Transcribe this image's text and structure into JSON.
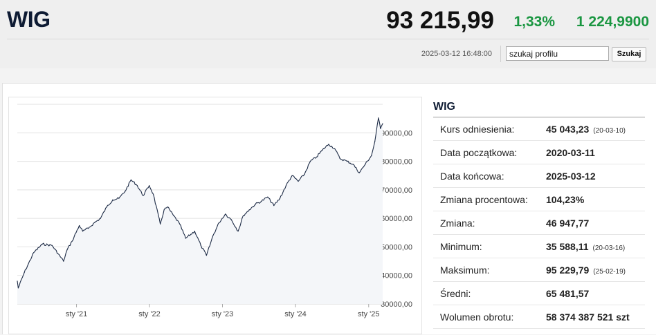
{
  "header": {
    "title": "WIG",
    "price": "93 215,99",
    "change_pct": "1,33%",
    "change_abs": "1 224,9900",
    "timestamp": "2025-03-12 16:48:00",
    "search_value": "szukaj profilu",
    "search_button": "Szukaj",
    "accent_positive": "#1a9641"
  },
  "chart_data": {
    "type": "area",
    "x_tick_labels": [
      "sty '21",
      "sty '22",
      "sty '23",
      "sty '24",
      "sty '25"
    ],
    "y_tick_labels": [
      "30000,00",
      "40000,00",
      "50000,00",
      "60000,00",
      "70000,00",
      "80000,00",
      "90000,00"
    ],
    "ylim": [
      30000,
      100000
    ],
    "xlim": [
      "2020-03-11",
      "2025-03-12"
    ],
    "grid": true,
    "series": [
      {
        "x": [
          "2020-03-11",
          "2020-03-16",
          "2020-04-15",
          "2020-06-01",
          "2020-07-15",
          "2020-09-01",
          "2020-10-28",
          "2020-11-15",
          "2020-12-10",
          "2021-01-15",
          "2021-02-01",
          "2021-03-01",
          "2021-04-01",
          "2021-05-01",
          "2021-06-01",
          "2021-07-01",
          "2021-08-01",
          "2021-09-01",
          "2021-10-01",
          "2021-11-01",
          "2021-11-30",
          "2021-12-31",
          "2022-01-20",
          "2022-02-24",
          "2022-03-15",
          "2022-04-01",
          "2022-05-01",
          "2022-06-01",
          "2022-07-01",
          "2022-08-15",
          "2022-09-15",
          "2022-10-13",
          "2022-11-15",
          "2022-12-15",
          "2023-01-15",
          "2023-02-15",
          "2023-03-20",
          "2023-04-15",
          "2023-05-15",
          "2023-06-15",
          "2023-07-15",
          "2023-08-15",
          "2023-09-15",
          "2023-10-15",
          "2023-11-15",
          "2023-12-15",
          "2024-01-15",
          "2024-02-15",
          "2024-03-15",
          "2024-04-15",
          "2024-05-15",
          "2024-06-15",
          "2024-07-15",
          "2024-08-10",
          "2024-09-15",
          "2024-10-15",
          "2024-11-15",
          "2024-12-15",
          "2025-01-15",
          "2025-02-01",
          "2025-02-19",
          "2025-03-01",
          "2025-03-12"
        ],
        "y": [
          38000,
          35588,
          41000,
          48000,
          51000,
          50500,
          45000,
          49000,
          52000,
          57500,
          55500,
          56500,
          58500,
          60000,
          64000,
          66500,
          67000,
          69500,
          73500,
          71500,
          68000,
          71500,
          68500,
          58000,
          63000,
          64000,
          61000,
          58000,
          53000,
          55500,
          50500,
          47000,
          54000,
          58500,
          61500,
          59500,
          55500,
          61000,
          63000,
          65000,
          66000,
          67500,
          64500,
          67000,
          71500,
          75000,
          73000,
          75500,
          80000,
          81500,
          84000,
          86000,
          84500,
          81000,
          80000,
          79000,
          76000,
          79000,
          82000,
          87000,
          95229,
          91500,
          93216
        ]
      }
    ]
  },
  "stats": {
    "title": "WIG",
    "rows": [
      {
        "label": "Kurs odniesienia:",
        "value": "45 043,23",
        "sub": "(20-03-10)"
      },
      {
        "label": "Data początkowa:",
        "value": "2020-03-11",
        "sub": ""
      },
      {
        "label": "Data końcowa:",
        "value": "2025-03-12",
        "sub": ""
      },
      {
        "label": "Zmiana procentowa:",
        "value": "104,23%",
        "sub": ""
      },
      {
        "label": "Zmiana:",
        "value": "46 947,77",
        "sub": ""
      },
      {
        "label": "Minimum:",
        "value": "35 588,11",
        "sub": "(20-03-16)"
      },
      {
        "label": "Maksimum:",
        "value": "95 229,79",
        "sub": "(25-02-19)"
      },
      {
        "label": "Średni:",
        "value": "65 481,57",
        "sub": ""
      },
      {
        "label": "Wolumen obrotu:",
        "value": "58 374 387 521 szt",
        "sub": ""
      }
    ]
  }
}
